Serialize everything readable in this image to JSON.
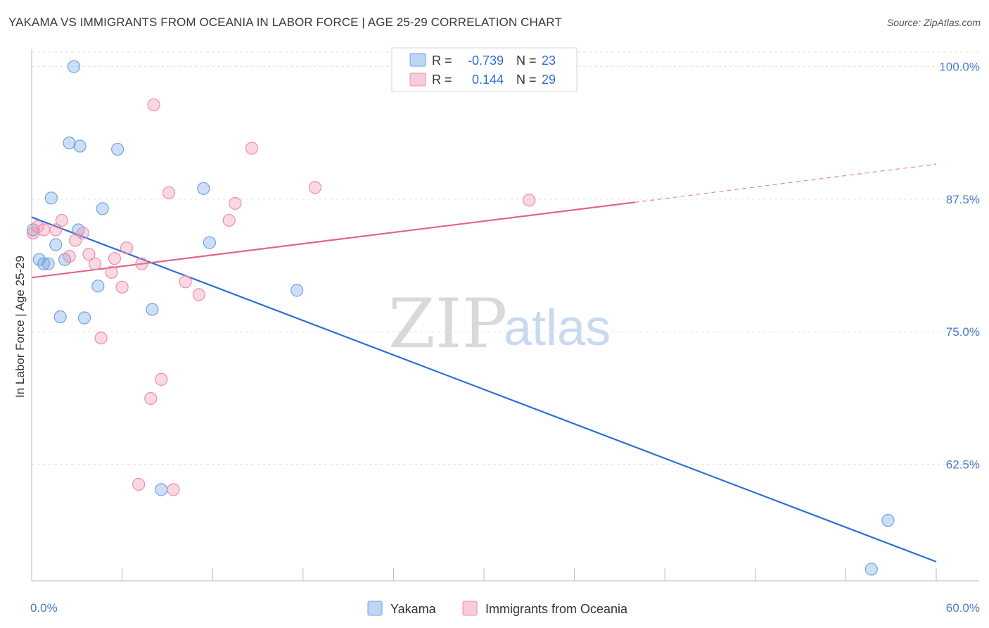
{
  "header": {
    "title": "YAKAMA VS IMMIGRANTS FROM OCEANIA IN LABOR FORCE | AGE 25-29 CORRELATION CHART",
    "source": "Source: ZipAtlas.com"
  },
  "watermark": {
    "zip": "ZIP",
    "atlas": "atlas"
  },
  "legend": {
    "r_label": "R =",
    "n_label": "N =",
    "series": [
      {
        "name": "Yakama",
        "r": "-0.739",
        "n": "23",
        "color": "#6fa3e6"
      },
      {
        "name": "Immigrants from Oceania",
        "r": "0.144",
        "n": "29",
        "color": "#ee8eac"
      }
    ]
  },
  "chart_data": {
    "type": "scatter",
    "title": "YAKAMA VS IMMIGRANTS FROM OCEANIA IN LABOR FORCE | AGE 25-29 CORRELATION CHART",
    "xlabel": "",
    "ylabel": "In Labor Force | Age 25-29",
    "xlim": [
      0,
      60
    ],
    "ylim": [
      51.5,
      101.5
    ],
    "x_tick_labels": [
      "0.0%",
      "60.0%"
    ],
    "y_ticks": [
      62.5,
      75.0,
      87.5,
      100.0
    ],
    "y_tick_labels": [
      "62.5%",
      "75.0%",
      "87.5%",
      "100.0%"
    ],
    "grid": true,
    "legend_position": "top-center",
    "series": [
      {
        "name": "Yakama",
        "color": "#6fa3e6",
        "trend_color": "#2e6fd1",
        "trend": {
          "x0": 0.0,
          "y0": 85.8,
          "x1": 60.0,
          "y1": 53.3
        },
        "points": [
          {
            "x": 2.8,
            "y": 100.0
          },
          {
            "x": 2.5,
            "y": 92.8
          },
          {
            "x": 3.2,
            "y": 92.5
          },
          {
            "x": 5.7,
            "y": 92.2
          },
          {
            "x": 11.4,
            "y": 88.5
          },
          {
            "x": 1.3,
            "y": 87.6
          },
          {
            "x": 4.7,
            "y": 86.6
          },
          {
            "x": 0.1,
            "y": 84.6
          },
          {
            "x": 3.1,
            "y": 84.6
          },
          {
            "x": 1.6,
            "y": 83.2
          },
          {
            "x": 11.8,
            "y": 83.4
          },
          {
            "x": 0.5,
            "y": 81.8
          },
          {
            "x": 2.2,
            "y": 81.8
          },
          {
            "x": 0.8,
            "y": 81.4
          },
          {
            "x": 1.1,
            "y": 81.4
          },
          {
            "x": 4.4,
            "y": 79.3
          },
          {
            "x": 17.6,
            "y": 78.9
          },
          {
            "x": 8.0,
            "y": 77.1
          },
          {
            "x": 1.9,
            "y": 76.4
          },
          {
            "x": 3.5,
            "y": 76.3
          },
          {
            "x": 8.6,
            "y": 60.1
          },
          {
            "x": 56.8,
            "y": 57.2
          },
          {
            "x": 55.7,
            "y": 52.6
          }
        ]
      },
      {
        "name": "Immigrants from Oceania",
        "color": "#ee8eac",
        "trend_color": "#e0648e",
        "trend": {
          "x0": 0.0,
          "y0": 80.1,
          "x1": 40.0,
          "y1": 87.2,
          "x_dash_end": 60.0,
          "y_dash_end": 90.8
        },
        "points": [
          {
            "x": 8.1,
            "y": 96.4
          },
          {
            "x": 14.6,
            "y": 92.3
          },
          {
            "x": 18.8,
            "y": 88.6
          },
          {
            "x": 9.1,
            "y": 88.1
          },
          {
            "x": 33.0,
            "y": 87.4
          },
          {
            "x": 13.5,
            "y": 87.1
          },
          {
            "x": 2.0,
            "y": 85.5
          },
          {
            "x": 13.1,
            "y": 85.5
          },
          {
            "x": 0.4,
            "y": 84.9
          },
          {
            "x": 0.8,
            "y": 84.6
          },
          {
            "x": 1.6,
            "y": 84.6
          },
          {
            "x": 3.4,
            "y": 84.3
          },
          {
            "x": 2.9,
            "y": 83.6
          },
          {
            "x": 6.3,
            "y": 82.9
          },
          {
            "x": 2.5,
            "y": 82.1
          },
          {
            "x": 3.8,
            "y": 82.3
          },
          {
            "x": 5.5,
            "y": 81.9
          },
          {
            "x": 4.2,
            "y": 81.4
          },
          {
            "x": 7.3,
            "y": 81.4
          },
          {
            "x": 5.3,
            "y": 80.6
          },
          {
            "x": 10.2,
            "y": 79.7
          },
          {
            "x": 6.0,
            "y": 79.2
          },
          {
            "x": 11.1,
            "y": 78.5
          },
          {
            "x": 4.6,
            "y": 74.4
          },
          {
            "x": 8.6,
            "y": 70.5
          },
          {
            "x": 7.9,
            "y": 68.7
          },
          {
            "x": 7.1,
            "y": 60.6
          },
          {
            "x": 9.4,
            "y": 60.1
          },
          {
            "x": 0.1,
            "y": 84.3
          }
        ]
      }
    ]
  }
}
